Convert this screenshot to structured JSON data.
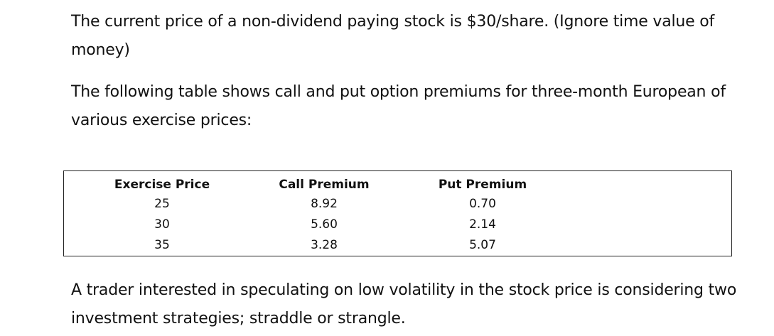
{
  "paragraphs": {
    "intro": "The current price of a non-dividend paying stock is $30/share.  (Ignore time value of money)",
    "table_intro": "The following table shows call and put option premiums for three-month European of various exercise prices:",
    "strategy": "A trader interested in speculating on low volatility in the stock price is considering two investment strategies; straddle or strangle."
  },
  "table": {
    "headers": [
      "Exercise Price",
      "Call Premium",
      "Put Premium"
    ],
    "rows": [
      [
        "25",
        "8.92",
        "0.70"
      ],
      [
        "30",
        "5.60",
        "2.14"
      ],
      [
        "35",
        "3.28",
        "5.07"
      ]
    ]
  }
}
